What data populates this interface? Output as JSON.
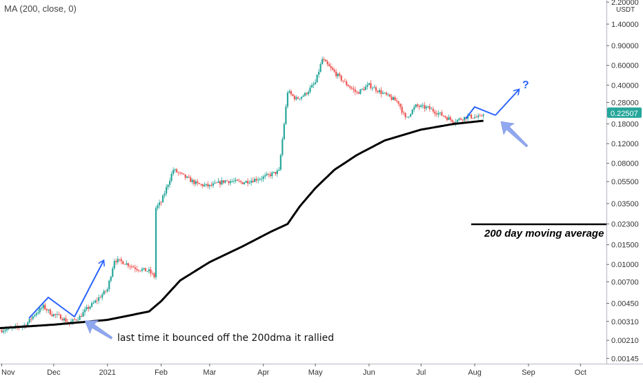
{
  "indicator": {
    "label": "MA (200, close, 0)"
  },
  "axis": {
    "currency": "USDT",
    "y_tick_labels": [
      "2.20000",
      "1.40000",
      "0.90000",
      "0.60000",
      "0.40000",
      "0.28000",
      "0.18000",
      "0.12000",
      "0.08000",
      "0.05500",
      "0.03500",
      "0.02300",
      "0.01500",
      "0.01000",
      "0.00700",
      "0.00450",
      "0.00310",
      "0.00210",
      "0.00145"
    ],
    "x_tick_labels": [
      "Nov",
      "Dec",
      "2021",
      "Feb",
      "Mar",
      "Apr",
      "May",
      "Jun",
      "Jul",
      "Aug",
      "Sep",
      "Oct"
    ]
  },
  "last_price": {
    "label": "0.22507",
    "value": 0.22507,
    "color": "#26a69a"
  },
  "legend": {
    "text": "200 day moving average"
  },
  "annotations": {
    "bounce_note": "last time it bounced off the 200dma it rallied",
    "question": "?"
  },
  "colors": {
    "up": "#26a69a",
    "down": "#ef5350",
    "ma": "#000000",
    "annotation": "#2962ff",
    "arrow_fill": "#90a8f0"
  },
  "chart_data": {
    "type": "candlestick",
    "title": "",
    "y_scale": "log",
    "ylim": [
      0.0013,
      2.3
    ],
    "x_range": [
      "2020-10-31",
      "2021-10-16"
    ],
    "x_ticks": [
      {
        "label": "Nov",
        "date": "2020-11-01"
      },
      {
        "label": "Dec",
        "date": "2020-12-01"
      },
      {
        "label": "2021",
        "date": "2021-01-01"
      },
      {
        "label": "Feb",
        "date": "2021-02-01"
      },
      {
        "label": "Mar",
        "date": "2021-03-01"
      },
      {
        "label": "Apr",
        "date": "2021-04-01"
      },
      {
        "label": "May",
        "date": "2021-05-01"
      },
      {
        "label": "Jun",
        "date": "2021-06-01"
      },
      {
        "label": "Jul",
        "date": "2021-07-01"
      },
      {
        "label": "Aug",
        "date": "2021-08-01"
      },
      {
        "label": "Sep",
        "date": "2021-09-01"
      },
      {
        "label": "Oct",
        "date": "2021-10-01"
      }
    ],
    "y_ticks": [
      2.2,
      1.4,
      0.9,
      0.6,
      0.4,
      0.28,
      0.18,
      0.12,
      0.08,
      0.055,
      0.035,
      0.023,
      0.015,
      0.01,
      0.007,
      0.0045,
      0.0031,
      0.0021,
      0.00145
    ],
    "price_path": [
      {
        "date": "2020-11-01",
        "value": 0.0026
      },
      {
        "date": "2020-11-08",
        "value": 0.0027
      },
      {
        "date": "2020-11-15",
        "value": 0.0029
      },
      {
        "date": "2020-11-20",
        "value": 0.0036
      },
      {
        "date": "2020-11-25",
        "value": 0.0042
      },
      {
        "date": "2020-11-30",
        "value": 0.0036
      },
      {
        "date": "2020-12-05",
        "value": 0.0034
      },
      {
        "date": "2020-12-10",
        "value": 0.003
      },
      {
        "date": "2020-12-16",
        "value": 0.0034
      },
      {
        "date": "2020-12-20",
        "value": 0.004
      },
      {
        "date": "2020-12-24",
        "value": 0.0045
      },
      {
        "date": "2020-12-28",
        "value": 0.0052
      },
      {
        "date": "2021-01-01",
        "value": 0.006
      },
      {
        "date": "2021-01-05",
        "value": 0.011
      },
      {
        "date": "2021-01-10",
        "value": 0.0105
      },
      {
        "date": "2021-01-18",
        "value": 0.0092
      },
      {
        "date": "2021-01-25",
        "value": 0.0087
      },
      {
        "date": "2021-01-28",
        "value": 0.0078
      },
      {
        "date": "2021-01-29",
        "value": 0.032
      },
      {
        "date": "2021-02-01",
        "value": 0.036
      },
      {
        "date": "2021-02-04",
        "value": 0.048
      },
      {
        "date": "2021-02-08",
        "value": 0.07
      },
      {
        "date": "2021-02-15",
        "value": 0.06
      },
      {
        "date": "2021-02-22",
        "value": 0.052
      },
      {
        "date": "2021-03-01",
        "value": 0.05
      },
      {
        "date": "2021-03-10",
        "value": 0.056
      },
      {
        "date": "2021-03-20",
        "value": 0.054
      },
      {
        "date": "2021-04-01",
        "value": 0.06
      },
      {
        "date": "2021-04-10",
        "value": 0.068
      },
      {
        "date": "2021-04-15",
        "value": 0.35
      },
      {
        "date": "2021-04-20",
        "value": 0.3
      },
      {
        "date": "2021-04-25",
        "value": 0.33
      },
      {
        "date": "2021-05-01",
        "value": 0.42
      },
      {
        "date": "2021-05-05",
        "value": 0.68
      },
      {
        "date": "2021-05-08",
        "value": 0.6
      },
      {
        "date": "2021-05-12",
        "value": 0.52
      },
      {
        "date": "2021-05-18",
        "value": 0.42
      },
      {
        "date": "2021-05-25",
        "value": 0.34
      },
      {
        "date": "2021-06-01",
        "value": 0.4
      },
      {
        "date": "2021-06-10",
        "value": 0.33
      },
      {
        "date": "2021-06-18",
        "value": 0.28
      },
      {
        "date": "2021-06-22",
        "value": 0.2
      },
      {
        "date": "2021-06-28",
        "value": 0.26
      },
      {
        "date": "2021-07-05",
        "value": 0.25
      },
      {
        "date": "2021-07-12",
        "value": 0.22
      },
      {
        "date": "2021-07-20",
        "value": 0.19
      },
      {
        "date": "2021-07-28",
        "value": 0.21
      },
      {
        "date": "2021-08-04",
        "value": 0.205
      },
      {
        "date": "2021-08-06",
        "value": 0.225
      }
    ],
    "ma200": [
      {
        "date": "2020-10-31",
        "value": 0.0027
      },
      {
        "date": "2020-12-01",
        "value": 0.0029
      },
      {
        "date": "2021-01-01",
        "value": 0.0032
      },
      {
        "date": "2021-01-25",
        "value": 0.0038
      },
      {
        "date": "2021-02-01",
        "value": 0.0047
      },
      {
        "date": "2021-02-12",
        "value": 0.0072
      },
      {
        "date": "2021-03-01",
        "value": 0.0105
      },
      {
        "date": "2021-03-20",
        "value": 0.0145
      },
      {
        "date": "2021-04-05",
        "value": 0.0195
      },
      {
        "date": "2021-04-15",
        "value": 0.023
      },
      {
        "date": "2021-04-22",
        "value": 0.033
      },
      {
        "date": "2021-05-01",
        "value": 0.048
      },
      {
        "date": "2021-05-12",
        "value": 0.07
      },
      {
        "date": "2021-05-25",
        "value": 0.095
      },
      {
        "date": "2021-06-10",
        "value": 0.128
      },
      {
        "date": "2021-07-01",
        "value": 0.16
      },
      {
        "date": "2021-07-20",
        "value": 0.18
      },
      {
        "date": "2021-08-06",
        "value": 0.192
      }
    ]
  }
}
